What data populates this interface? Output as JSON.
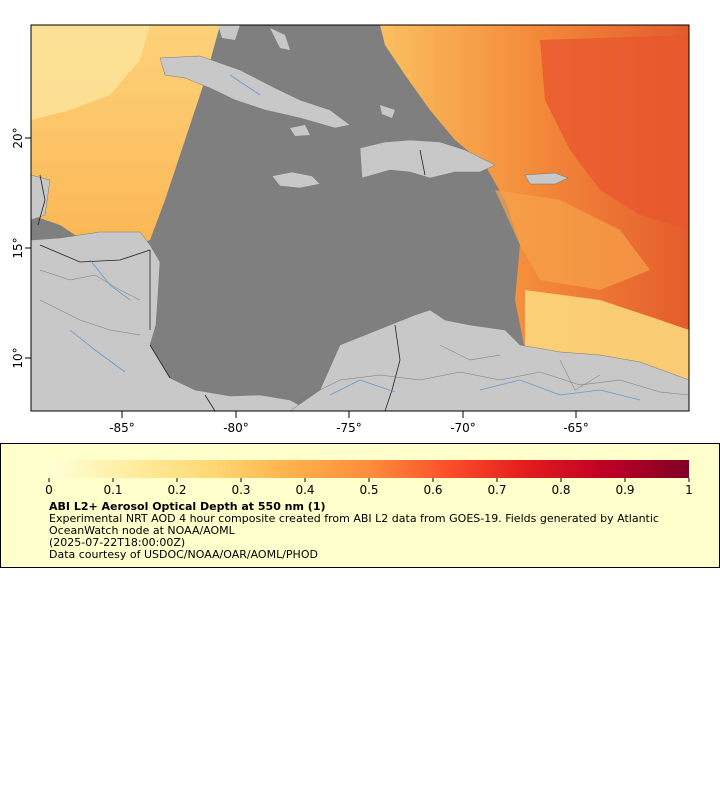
{
  "map": {
    "x_ticks": [
      "-85°",
      "-80°",
      "-75°",
      "-70°",
      "-65°"
    ],
    "y_ticks": [
      "20°",
      "15°",
      "10°"
    ],
    "colors": {
      "ocean": "#7f7f7f",
      "land": "#c8c8c8",
      "border": "#333333",
      "river": "#6699cc",
      "aod_low": "#ffe89a",
      "aod_mid": "#f9a040",
      "aod_high": "#e8502a"
    }
  },
  "legend": {
    "ticks": [
      "0",
      "0.1",
      "0.2",
      "0.3",
      "0.4",
      "0.5",
      "0.6",
      "0.7",
      "0.8",
      "0.9",
      "1"
    ],
    "title": "ABI L2+ Aerosol Optical Depth at 550 nm (1)",
    "description": "Experimental NRT AOD 4 hour composite created from ABI L2 data from GOES-19. Fields generated by Atlantic OceanWatch node at NOAA/AOML",
    "date": "(2025-07-22T18:00:00Z)",
    "credit": "Data courtesy of USDOC/NOAA/OAR/AOML/PHOD",
    "colormap": [
      "#ffffd9",
      "#ffeda0",
      "#fed976",
      "#feb24c",
      "#fd8d3c",
      "#fc4e2a",
      "#e31a1c",
      "#bd0026",
      "#800026"
    ]
  }
}
